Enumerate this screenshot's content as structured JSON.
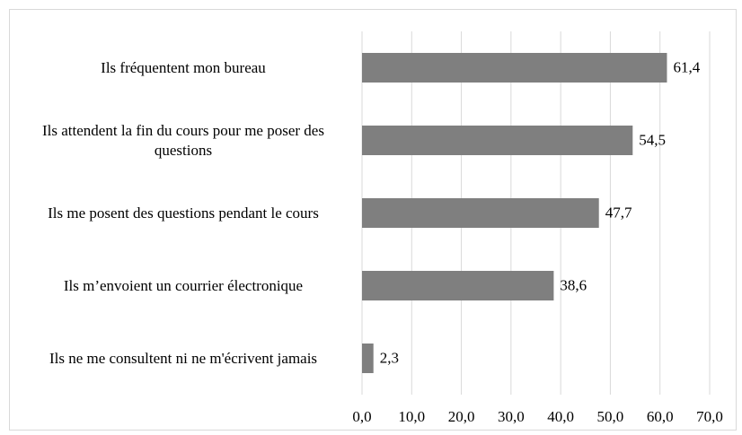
{
  "chart_data": {
    "type": "hbar",
    "categories": [
      "Ils fréquentent mon bureau",
      "Ils attendent la fin du cours pour me poser des questions",
      "Ils me posent des questions pendant le cours",
      "Ils m’envoient un courrier électronique",
      "Ils ne me consultent ni ne m'écrivent jamais"
    ],
    "values": [
      61.4,
      54.5,
      47.7,
      38.6,
      2.3
    ],
    "value_labels": [
      "61,4",
      "54,5",
      "47,7",
      "38,6",
      "2,3"
    ],
    "color": "#7f7f7f",
    "xlim": [
      0,
      70
    ],
    "xticks": [
      {
        "value": 0,
        "label": "0,0"
      },
      {
        "value": 10,
        "label": "10,0"
      },
      {
        "value": 20,
        "label": "20,0"
      },
      {
        "value": 30,
        "label": "30,0"
      },
      {
        "value": 40,
        "label": "40,0"
      },
      {
        "value": 50,
        "label": "50,0"
      },
      {
        "value": 60,
        "label": "60,0"
      },
      {
        "value": 70,
        "label": "70,0"
      }
    ],
    "grid": true
  }
}
